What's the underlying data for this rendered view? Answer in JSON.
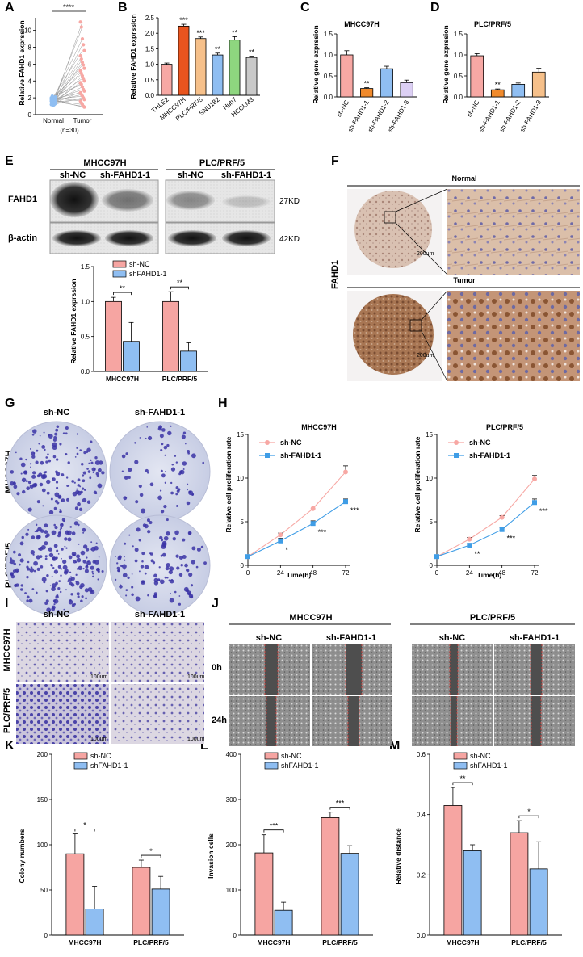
{
  "panel_letters": [
    "A",
    "B",
    "C",
    "D",
    "E",
    "F",
    "G",
    "H",
    "I",
    "J",
    "K",
    "L",
    "M"
  ],
  "colors": {
    "red": "#f6a5a2",
    "blue": "#8fbef2",
    "orange": "#f08a2c",
    "darkorange": "#e9541e",
    "peach": "#f6c08a",
    "green": "#8ed67f",
    "grey": "#c9c9c9",
    "pink": "#f7a8a4",
    "purple": "#3b34a6"
  },
  "panelA": {
    "ylabel": "Relative FAHD1 exprssion",
    "categories": [
      "Normal",
      "Tumor"
    ],
    "note": "(n=30)",
    "sig": "****",
    "yticks": [
      "0",
      "2",
      "4",
      "6",
      "8",
      "10"
    ]
  },
  "panelB": {
    "ylabel": "Relative FAHD1 exprssion",
    "yticks": [
      "0.0",
      "0.5",
      "1.0",
      "1.5",
      "2.0",
      "2.5"
    ]
  },
  "panelC": {
    "title": "MHCC97H",
    "ylabel": "Relative gene exprssion",
    "yticks": [
      "0.0",
      "0.5",
      "1.0",
      "1.5"
    ]
  },
  "panelD": {
    "title": "PLC/PRF/5",
    "ylabel": "Relative gene exprssion",
    "yticks": [
      "0.0",
      "0.5",
      "1.0",
      "1.5"
    ]
  },
  "panelE": {
    "cell1": "MHCC97H",
    "cell2": "PLC/PRF/5",
    "lane1": "sh-NC",
    "lane2": "sh-FAHD1-1",
    "row1": "FAHD1",
    "row2": "β-actin",
    "kd1": "27KD",
    "kd2": "42KD",
    "ylabel": "Relative FAHD1 exprssion",
    "legend": [
      "sh-NC",
      "shFAHD1-1"
    ],
    "yticks": [
      "0.0",
      "0.5",
      "1.0",
      "1.5"
    ],
    "sig": "**"
  },
  "panelF": {
    "normal": "Normal",
    "tumor": "Tumor",
    "side": "FAHD1",
    "scale": "200um"
  },
  "panelG": {
    "col1": "sh-NC",
    "col2": "sh-FAHD1-1",
    "row1": "MHCC97H",
    "row2": "PLC/PRF/5"
  },
  "panelH": {
    "xlabel": "Time(h)",
    "ylabel": "Relative cell proliferation rate",
    "titles": [
      "MHCC97H",
      "PLC/PRF/5"
    ],
    "legend": [
      "sh-NC",
      "sh-FAHD1-1"
    ],
    "xticks": [
      "0",
      "24",
      "48",
      "72"
    ],
    "yticks": [
      "0",
      "5",
      "10",
      "15"
    ]
  },
  "panelI": {
    "col1": "sh-NC",
    "col2": "sh-FAHD1-1",
    "row1": "MHCC97H",
    "row2": "PLC/PRF/5",
    "scale": "100um"
  },
  "panelJ": {
    "cell1": "MHCC97H",
    "cell2": "PLC/PRF/5",
    "lane1": "sh-NC",
    "lane2": "sh-FAHD1-1",
    "t0": "0h",
    "t1": "24h"
  },
  "panelK": {
    "ylabel": "Colony numbers",
    "legend": [
      "sh-NC",
      "shFAHD1-1"
    ],
    "yticks": [
      "0",
      "50",
      "100",
      "150",
      "200"
    ]
  },
  "panelL": {
    "ylabel": "Invasion  cells",
    "legend": [
      "sh-NC",
      "shFAHD1-1"
    ],
    "yticks": [
      "0",
      "100",
      "200",
      "300",
      "400"
    ]
  },
  "panelM": {
    "ylabel": "Relative distance",
    "legend": [
      "sh-NC",
      "shFAHD1-1"
    ],
    "yticks": [
      "0.0",
      "0.2",
      "0.4",
      "0.6"
    ]
  },
  "chart_data": [
    {
      "id": "A",
      "type": "scatter",
      "title": "",
      "categories": [
        "Normal",
        "Tumor"
      ],
      "series": [
        {
          "name": "Normal",
          "values": [
            1.2,
            1.6,
            1.9,
            1.4,
            2.1,
            1.8,
            1.5,
            1.3,
            1.7,
            2.0,
            1.6,
            1.9,
            1.1,
            1.8,
            1.4,
            1.6,
            2.2,
            1.5,
            1.7,
            1.3,
            1.9,
            1.6,
            1.8,
            1.2,
            1.5,
            2.0,
            1.4,
            1.7,
            1.6,
            1.8
          ]
        },
        {
          "name": "Tumor",
          "values": [
            11.0,
            10.4,
            9.0,
            8.3,
            7.6,
            7.0,
            6.6,
            6.2,
            5.9,
            5.5,
            5.2,
            4.9,
            4.6,
            4.3,
            4.0,
            3.8,
            3.6,
            3.3,
            3.0,
            2.8,
            2.6,
            2.4,
            2.2,
            2.0,
            1.8,
            1.6,
            1.4,
            1.2,
            1.0,
            0.9
          ]
        }
      ],
      "ylabel": "Relative FAHD1 exprssion",
      "ylim": [
        0,
        11.5
      ]
    },
    {
      "id": "B",
      "type": "bar",
      "title": "",
      "categories": [
        "THLE2",
        "MHCC97H",
        "PLC/PRF/5",
        "SNU182",
        "Huh7",
        "HCCLM3"
      ],
      "values": [
        1.0,
        2.23,
        1.83,
        1.3,
        1.78,
        1.22
      ],
      "errors": [
        0.04,
        0.06,
        0.05,
        0.06,
        0.11,
        0.04
      ],
      "stars": [
        "",
        "***",
        "***",
        "**",
        "**",
        "**"
      ],
      "ylabel": "Relative FAHD1 exprssion",
      "ylim": [
        0,
        2.5
      ]
    },
    {
      "id": "C",
      "type": "bar",
      "title": "MHCC97H",
      "categories": [
        "sh-NC",
        "sh-FAHD1-1",
        "sh-FAHD1-2",
        "sh-FAHD1-3"
      ],
      "values": [
        1.0,
        0.2,
        0.67,
        0.34
      ],
      "errors": [
        0.1,
        0.02,
        0.06,
        0.06
      ],
      "stars": [
        "",
        "**",
        "",
        ""
      ],
      "ylabel": "Relative gene exprssion",
      "ylim": [
        0,
        1.5
      ]
    },
    {
      "id": "D",
      "type": "bar",
      "title": "PLC/PRF/5",
      "categories": [
        "sh-NC",
        "sh-FAHD1-1",
        "sh-FAHD1-2",
        "sh-FAHD1-3"
      ],
      "values": [
        0.98,
        0.17,
        0.3,
        0.59
      ],
      "errors": [
        0.05,
        0.02,
        0.03,
        0.09
      ],
      "stars": [
        "",
        "**",
        "",
        ""
      ],
      "ylabel": "Relative gene exprssion",
      "ylim": [
        0,
        1.5
      ]
    },
    {
      "id": "E",
      "type": "bar",
      "categories": [
        "MHCC97H",
        "PLC/PRF/5"
      ],
      "series": [
        {
          "name": "sh-NC",
          "values": [
            1.0,
            1.0
          ],
          "errors": [
            0.06,
            0.14
          ]
        },
        {
          "name": "shFAHD1-1",
          "values": [
            0.43,
            0.29
          ],
          "errors": [
            0.27,
            0.12
          ]
        }
      ],
      "stars": [
        "**",
        "**"
      ],
      "ylabel": "Relative FAHD1 exprssion",
      "ylim": [
        0,
        1.5
      ]
    },
    {
      "id": "H1",
      "type": "line",
      "title": "MHCC97H",
      "x": [
        0,
        24,
        48,
        72
      ],
      "series": [
        {
          "name": "sh-NC",
          "values": [
            1.0,
            3.5,
            6.5,
            10.7
          ],
          "errors": [
            0.1,
            0.2,
            0.3,
            0.7
          ]
        },
        {
          "name": "sh-FAHD1-1",
          "values": [
            1.0,
            2.8,
            4.8,
            7.3
          ],
          "errors": [
            0.1,
            0.3,
            0.3,
            0.3
          ]
        }
      ],
      "stars": [
        "",
        "*",
        "***",
        "***"
      ],
      "xlabel": "Time(h)",
      "ylabel": "Relative cell proliferation rate",
      "ylim": [
        0,
        15
      ]
    },
    {
      "id": "H2",
      "type": "line",
      "title": "PLC/PRF/5",
      "x": [
        0,
        24,
        48,
        72
      ],
      "series": [
        {
          "name": "sh-NC",
          "values": [
            1.0,
            3.0,
            5.5,
            9.9
          ],
          "errors": [
            0.1,
            0.2,
            0.2,
            0.4
          ]
        },
        {
          "name": "sh-FAHD1-1",
          "values": [
            1.0,
            2.3,
            4.1,
            7.2
          ],
          "errors": [
            0.1,
            0.2,
            0.2,
            0.4
          ]
        }
      ],
      "stars": [
        "",
        "**",
        "***",
        "***"
      ],
      "xlabel": "Time(h)",
      "ylabel": "Relative cell proliferation rate",
      "ylim": [
        0,
        15
      ]
    },
    {
      "id": "K",
      "type": "bar",
      "categories": [
        "MHCC97H",
        "PLC/PRF/5"
      ],
      "series": [
        {
          "name": "sh-NC",
          "values": [
            90,
            75
          ],
          "errors": [
            22,
            8
          ]
        },
        {
          "name": "shFAHD1-1",
          "values": [
            29,
            51
          ],
          "errors": [
            25,
            14
          ]
        }
      ],
      "stars": [
        "*",
        "*"
      ],
      "ylabel": "Colony numbers",
      "ylim": [
        0,
        200
      ]
    },
    {
      "id": "L",
      "type": "bar",
      "categories": [
        "MHCC97H",
        "PLC/PRF/5"
      ],
      "series": [
        {
          "name": "sh-NC",
          "values": [
            182,
            260
          ],
          "errors": [
            40,
            12
          ]
        },
        {
          "name": "shFAHD1-1",
          "values": [
            55,
            181
          ],
          "errors": [
            18,
            17
          ]
        }
      ],
      "stars": [
        "***",
        "***"
      ],
      "ylabel": "Invasion  cells",
      "ylim": [
        0,
        400
      ]
    },
    {
      "id": "M",
      "type": "bar",
      "categories": [
        "MHCC97H",
        "PLC/PRF/5"
      ],
      "series": [
        {
          "name": "sh-NC",
          "values": [
            0.43,
            0.34
          ],
          "errors": [
            0.06,
            0.04
          ]
        },
        {
          "name": "shFAHD1-1",
          "values": [
            0.28,
            0.22
          ],
          "errors": [
            0.02,
            0.09
          ]
        }
      ],
      "stars": [
        "**",
        "*"
      ],
      "ylabel": "Relative distance",
      "ylim": [
        0,
        0.6
      ]
    }
  ]
}
